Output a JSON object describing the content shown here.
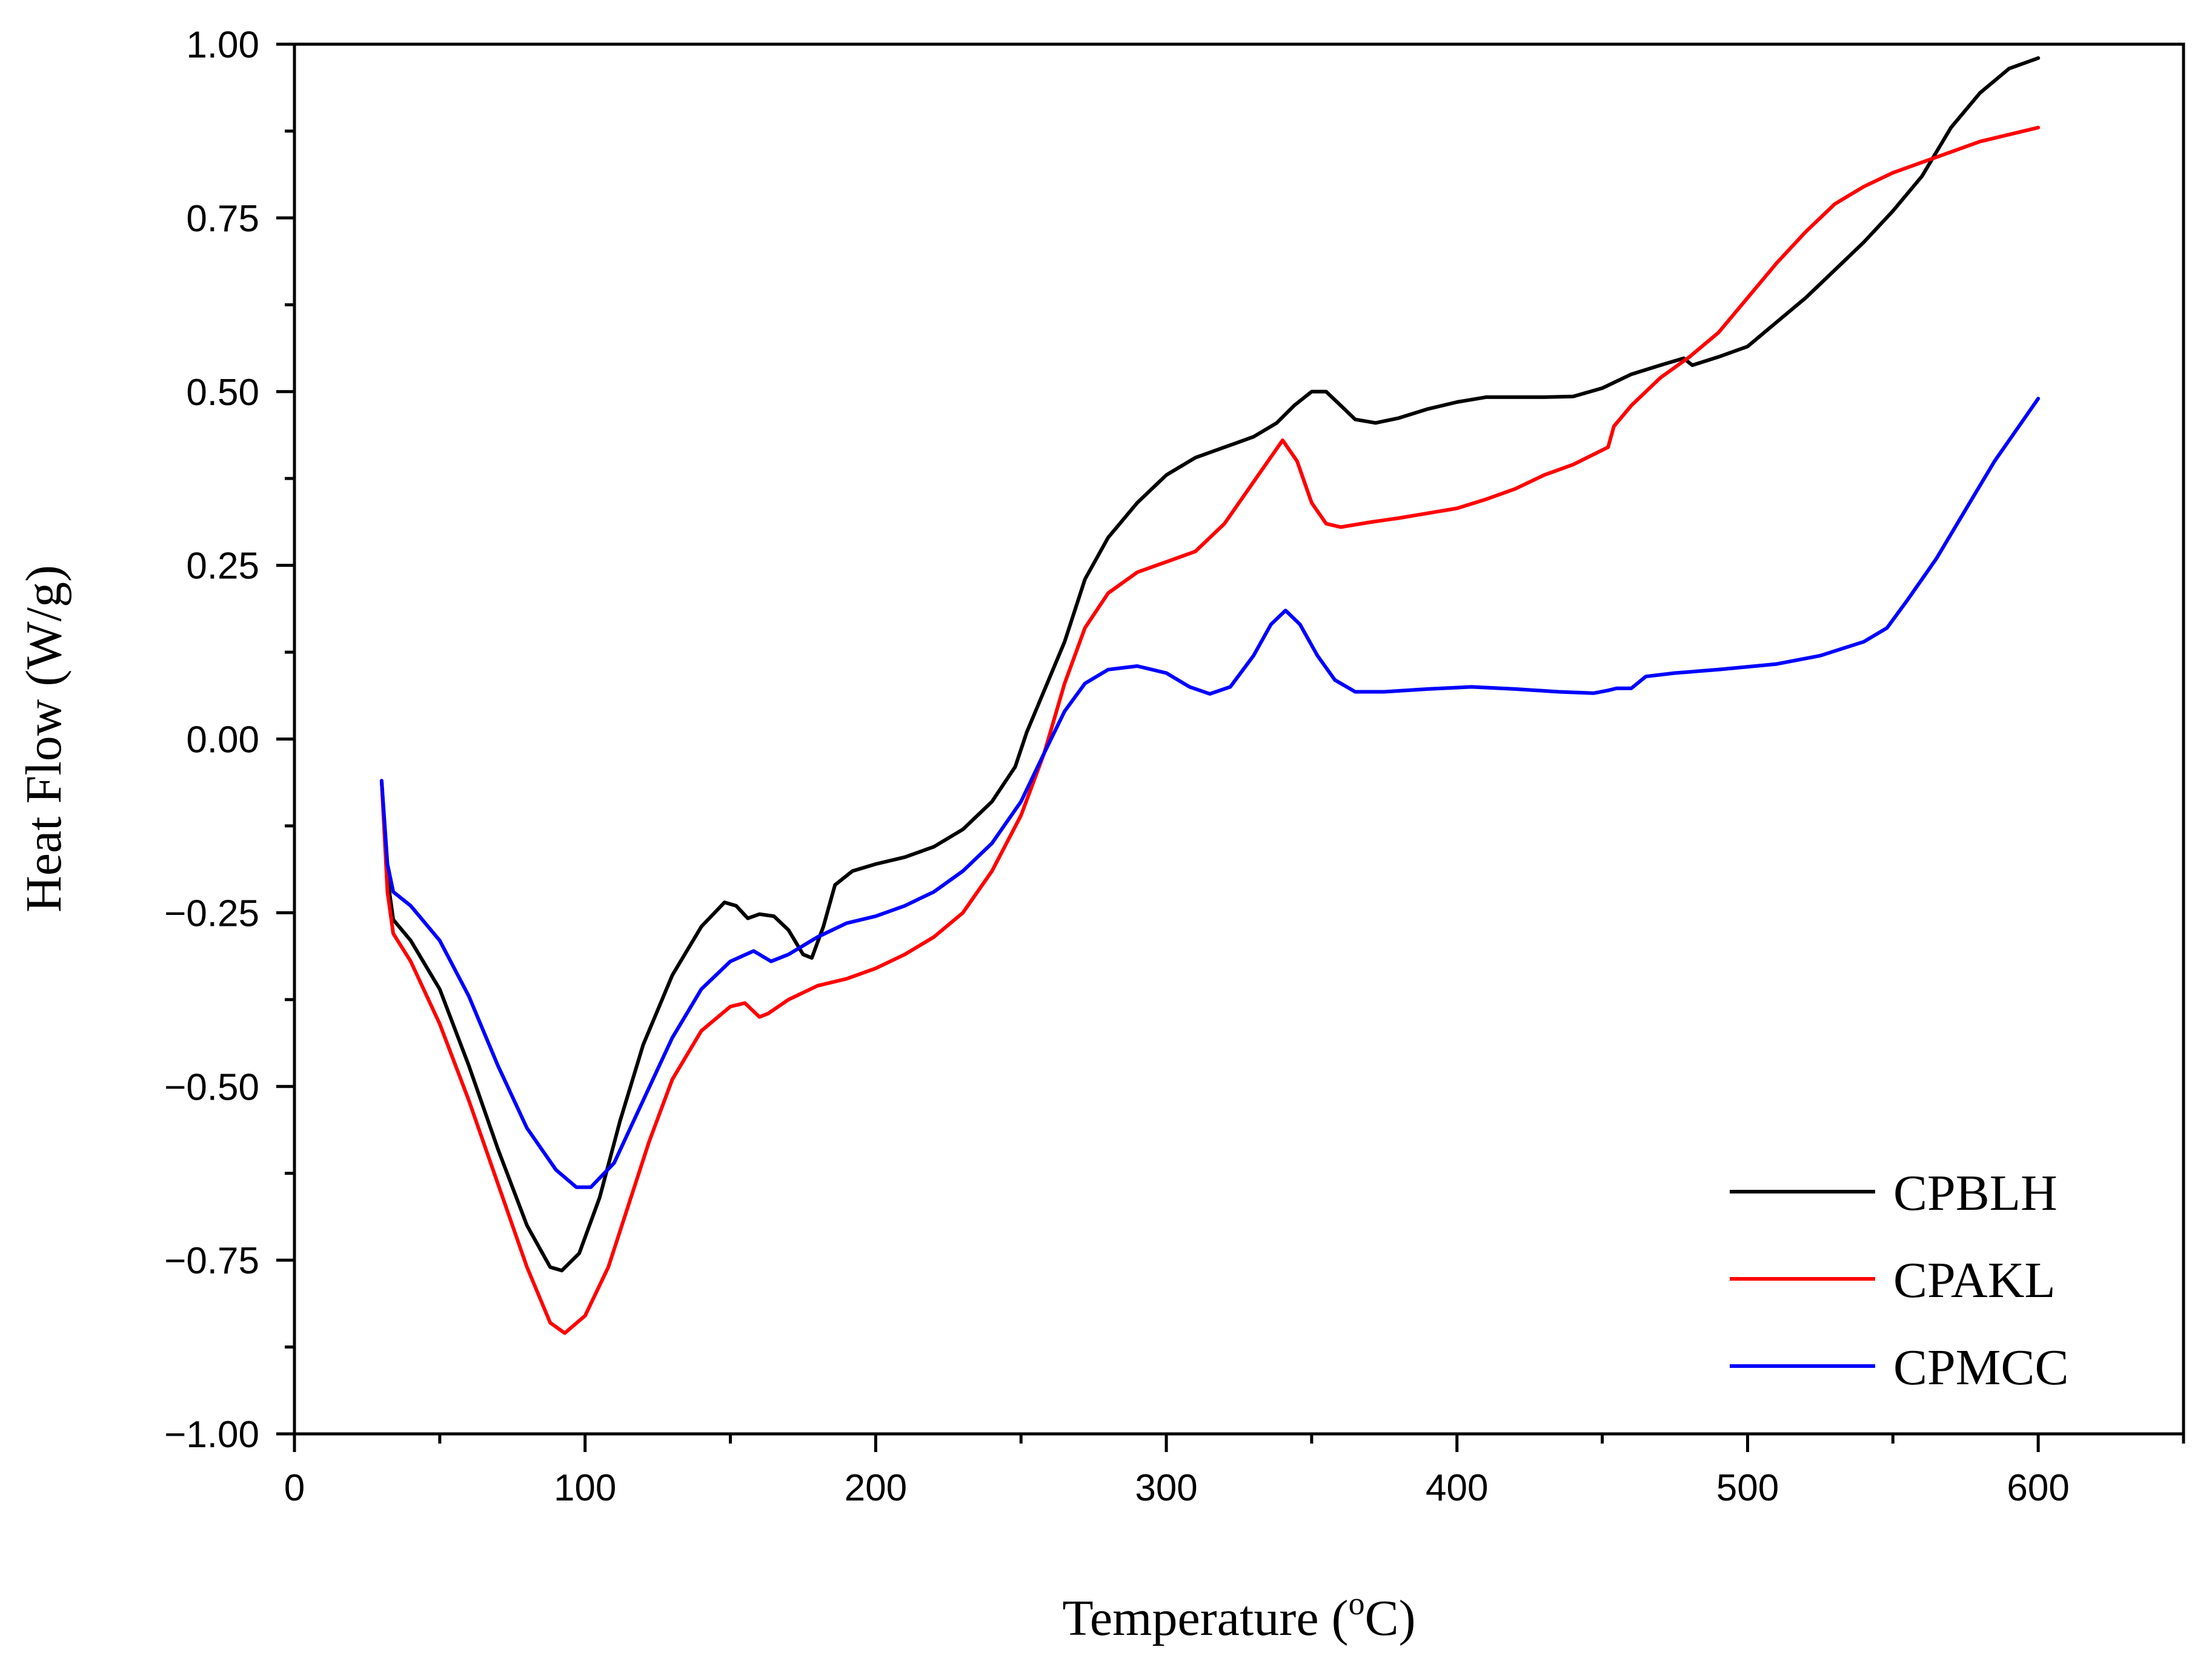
{
  "chart_data": {
    "type": "line",
    "title": "",
    "xlabel": "Temperature (",
    "xlabel_sup": "o",
    "xlabel_suffix": "C)",
    "ylabel": "Heat Flow (W/g)",
    "xlim": [
      0,
      650
    ],
    "ylim": [
      -1.0,
      1.0
    ],
    "x_ticks": [
      0,
      100,
      200,
      300,
      400,
      500,
      600
    ],
    "x_tick_labels": [
      "0",
      "100",
      "200",
      "300",
      "400",
      "500",
      "600"
    ],
    "y_ticks": [
      -1.0,
      -0.75,
      -0.5,
      -0.25,
      0.0,
      0.25,
      0.5,
      0.75,
      1.0
    ],
    "y_tick_labels": [
      "−1.00",
      "−0.75",
      "−0.50",
      "−0.25",
      "0.00",
      "0.25",
      "0.50",
      "0.75",
      "1.00"
    ],
    "legend_position": "bottom-right",
    "series": [
      {
        "name": "CPBLH",
        "color": "#000000",
        "points": [
          [
            30,
            -0.06
          ],
          [
            32,
            -0.2
          ],
          [
            34,
            -0.26
          ],
          [
            40,
            -0.29
          ],
          [
            50,
            -0.36
          ],
          [
            60,
            -0.47
          ],
          [
            70,
            -0.59
          ],
          [
            80,
            -0.7
          ],
          [
            88,
            -0.76
          ],
          [
            92,
            -0.765
          ],
          [
            98,
            -0.74
          ],
          [
            105,
            -0.66
          ],
          [
            112,
            -0.55
          ],
          [
            120,
            -0.44
          ],
          [
            130,
            -0.34
          ],
          [
            140,
            -0.27
          ],
          [
            148,
            -0.235
          ],
          [
            152,
            -0.24
          ],
          [
            156,
            -0.258
          ],
          [
            160,
            -0.252
          ],
          [
            165,
            -0.255
          ],
          [
            170,
            -0.275
          ],
          [
            175,
            -0.31
          ],
          [
            178,
            -0.315
          ],
          [
            182,
            -0.27
          ],
          [
            186,
            -0.21
          ],
          [
            192,
            -0.19
          ],
          [
            200,
            -0.18
          ],
          [
            210,
            -0.17
          ],
          [
            220,
            -0.155
          ],
          [
            230,
            -0.13
          ],
          [
            240,
            -0.09
          ],
          [
            248,
            -0.04
          ],
          [
            252,
            0.01
          ],
          [
            258,
            0.07
          ],
          [
            265,
            0.14
          ],
          [
            272,
            0.23
          ],
          [
            280,
            0.29
          ],
          [
            290,
            0.34
          ],
          [
            300,
            0.38
          ],
          [
            310,
            0.405
          ],
          [
            320,
            0.42
          ],
          [
            330,
            0.435
          ],
          [
            338,
            0.455
          ],
          [
            344,
            0.48
          ],
          [
            350,
            0.5
          ],
          [
            355,
            0.5
          ],
          [
            360,
            0.48
          ],
          [
            365,
            0.46
          ],
          [
            372,
            0.455
          ],
          [
            380,
            0.462
          ],
          [
            390,
            0.475
          ],
          [
            400,
            0.485
          ],
          [
            410,
            0.492
          ],
          [
            420,
            0.492
          ],
          [
            430,
            0.492
          ],
          [
            440,
            0.493
          ],
          [
            450,
            0.505
          ],
          [
            460,
            0.525
          ],
          [
            470,
            0.538
          ],
          [
            478,
            0.548
          ],
          [
            481,
            0.538
          ],
          [
            490,
            0.55
          ],
          [
            500,
            0.565
          ],
          [
            510,
            0.6
          ],
          [
            520,
            0.635
          ],
          [
            530,
            0.675
          ],
          [
            540,
            0.715
          ],
          [
            550,
            0.76
          ],
          [
            560,
            0.81
          ],
          [
            570,
            0.88
          ],
          [
            580,
            0.93
          ],
          [
            590,
            0.965
          ],
          [
            600,
            0.98
          ]
        ]
      },
      {
        "name": "CPAKL",
        "color": "#ff0000",
        "points": [
          [
            30,
            -0.06
          ],
          [
            32,
            -0.22
          ],
          [
            34,
            -0.28
          ],
          [
            40,
            -0.32
          ],
          [
            50,
            -0.41
          ],
          [
            60,
            -0.52
          ],
          [
            70,
            -0.64
          ],
          [
            80,
            -0.76
          ],
          [
            88,
            -0.84
          ],
          [
            93,
            -0.855
          ],
          [
            100,
            -0.83
          ],
          [
            108,
            -0.76
          ],
          [
            115,
            -0.67
          ],
          [
            122,
            -0.58
          ],
          [
            130,
            -0.49
          ],
          [
            140,
            -0.42
          ],
          [
            150,
            -0.385
          ],
          [
            155,
            -0.38
          ],
          [
            160,
            -0.4
          ],
          [
            163,
            -0.395
          ],
          [
            170,
            -0.375
          ],
          [
            180,
            -0.355
          ],
          [
            190,
            -0.345
          ],
          [
            200,
            -0.33
          ],
          [
            210,
            -0.31
          ],
          [
            220,
            -0.285
          ],
          [
            230,
            -0.25
          ],
          [
            240,
            -0.19
          ],
          [
            250,
            -0.11
          ],
          [
            258,
            -0.02
          ],
          [
            265,
            0.08
          ],
          [
            272,
            0.16
          ],
          [
            280,
            0.21
          ],
          [
            290,
            0.24
          ],
          [
            300,
            0.255
          ],
          [
            310,
            0.27
          ],
          [
            320,
            0.31
          ],
          [
            330,
            0.37
          ],
          [
            340,
            0.43
          ],
          [
            345,
            0.4
          ],
          [
            350,
            0.34
          ],
          [
            355,
            0.31
          ],
          [
            360,
            0.305
          ],
          [
            370,
            0.312
          ],
          [
            380,
            0.318
          ],
          [
            390,
            0.325
          ],
          [
            400,
            0.332
          ],
          [
            410,
            0.345
          ],
          [
            420,
            0.36
          ],
          [
            430,
            0.38
          ],
          [
            440,
            0.395
          ],
          [
            452,
            0.42
          ],
          [
            454,
            0.45
          ],
          [
            460,
            0.48
          ],
          [
            470,
            0.52
          ],
          [
            480,
            0.55
          ],
          [
            490,
            0.585
          ],
          [
            500,
            0.635
          ],
          [
            510,
            0.685
          ],
          [
            520,
            0.73
          ],
          [
            530,
            0.77
          ],
          [
            540,
            0.795
          ],
          [
            550,
            0.815
          ],
          [
            560,
            0.83
          ],
          [
            570,
            0.845
          ],
          [
            580,
            0.86
          ],
          [
            590,
            0.87
          ],
          [
            600,
            0.88
          ]
        ]
      },
      {
        "name": "CPMCC",
        "color": "#0000ff",
        "points": [
          [
            30,
            -0.06
          ],
          [
            32,
            -0.18
          ],
          [
            34,
            -0.22
          ],
          [
            40,
            -0.24
          ],
          [
            50,
            -0.29
          ],
          [
            60,
            -0.37
          ],
          [
            70,
            -0.47
          ],
          [
            80,
            -0.56
          ],
          [
            90,
            -0.62
          ],
          [
            97,
            -0.645
          ],
          [
            102,
            -0.645
          ],
          [
            110,
            -0.61
          ],
          [
            120,
            -0.52
          ],
          [
            130,
            -0.43
          ],
          [
            140,
            -0.36
          ],
          [
            150,
            -0.32
          ],
          [
            158,
            -0.305
          ],
          [
            164,
            -0.32
          ],
          [
            170,
            -0.31
          ],
          [
            180,
            -0.285
          ],
          [
            190,
            -0.265
          ],
          [
            200,
            -0.255
          ],
          [
            210,
            -0.24
          ],
          [
            220,
            -0.22
          ],
          [
            230,
            -0.19
          ],
          [
            240,
            -0.15
          ],
          [
            250,
            -0.09
          ],
          [
            258,
            -0.02
          ],
          [
            265,
            0.04
          ],
          [
            272,
            0.08
          ],
          [
            280,
            0.1
          ],
          [
            290,
            0.105
          ],
          [
            300,
            0.095
          ],
          [
            308,
            0.075
          ],
          [
            315,
            0.065
          ],
          [
            322,
            0.075
          ],
          [
            330,
            0.12
          ],
          [
            336,
            0.165
          ],
          [
            341,
            0.185
          ],
          [
            346,
            0.165
          ],
          [
            352,
            0.12
          ],
          [
            358,
            0.085
          ],
          [
            365,
            0.068
          ],
          [
            375,
            0.068
          ],
          [
            390,
            0.072
          ],
          [
            405,
            0.075
          ],
          [
            420,
            0.072
          ],
          [
            435,
            0.068
          ],
          [
            447,
            0.066
          ],
          [
            452,
            0.07
          ],
          [
            455,
            0.073
          ],
          [
            460,
            0.073
          ],
          [
            465,
            0.09
          ],
          [
            475,
            0.095
          ],
          [
            490,
            0.1
          ],
          [
            510,
            0.108
          ],
          [
            525,
            0.12
          ],
          [
            540,
            0.14
          ],
          [
            548,
            0.16
          ],
          [
            555,
            0.2
          ],
          [
            565,
            0.26
          ],
          [
            575,
            0.33
          ],
          [
            585,
            0.4
          ],
          [
            595,
            0.46
          ],
          [
            600,
            0.49
          ]
        ]
      }
    ]
  }
}
